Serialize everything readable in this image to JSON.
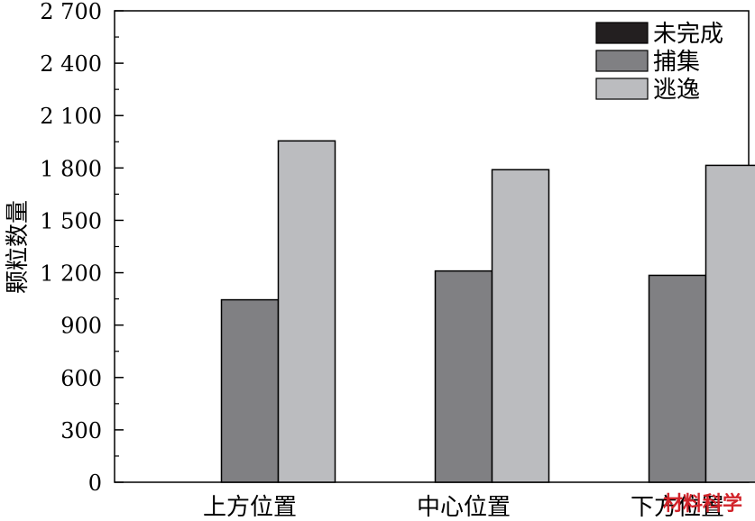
{
  "chart_data": {
    "type": "bar",
    "ylabel": "颗粒数量",
    "xlabel": "",
    "categories": [
      "上方位置",
      "中心位置",
      "下方位置"
    ],
    "series": [
      {
        "name": "未完成",
        "values": [
          0,
          0,
          0
        ],
        "color": "#231f20"
      },
      {
        "name": "捕集",
        "values": [
          1045,
          1210,
          1185
        ],
        "color": "#808083"
      },
      {
        "name": "逃逸",
        "values": [
          1955,
          1790,
          1815
        ],
        "color": "#bbbcbf"
      }
    ],
    "ylim": [
      0,
      2700
    ],
    "yticks": [
      0,
      300,
      600,
      900,
      1200,
      1500,
      1800,
      2100,
      2400,
      2700
    ],
    "ytick_labels": [
      "0",
      "300",
      "600",
      "900",
      "1 200",
      "1 500",
      "1 800",
      "2 100",
      "2 400",
      "2 700"
    ],
    "grid": false,
    "legend_position": "top-right"
  },
  "watermark": "材料科学"
}
